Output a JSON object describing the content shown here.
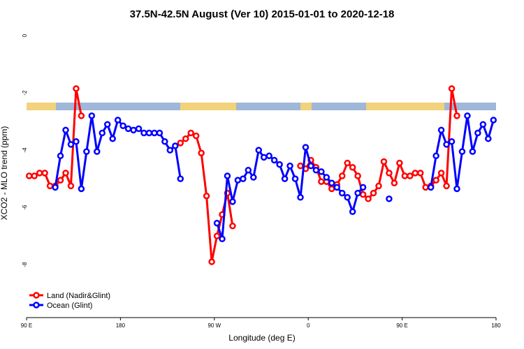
{
  "chart_data": {
    "type": "line",
    "title": "37.5N-42.5N August (Ver 10)   2015-01-01 to 2020-12-18",
    "xlabel": "Longitude (deg E)",
    "ylabel": "XCO2 - MLO trend (ppm)",
    "x": [
      92.5,
      97.5,
      102.5,
      107.5,
      112.5,
      117.5,
      122.5,
      127.5,
      132.5,
      137.5,
      142.5,
      147.5,
      152.5,
      157.5,
      162.5,
      167.5,
      172.5,
      177.5,
      182.5,
      187.5,
      192.5,
      197.5,
      202.5,
      207.5,
      212.5,
      217.5,
      222.5,
      227.5,
      232.5,
      237.5,
      242.5,
      247.5,
      252.5,
      257.5,
      262.5,
      267.5,
      272.5,
      277.5,
      282.5,
      287.5,
      292.5,
      297.5,
      302.5,
      307.5,
      312.5,
      317.5,
      322.5,
      327.5,
      332.5,
      337.5,
      342.5,
      347.5,
      352.5,
      357.5,
      362.5,
      367.5,
      372.5,
      377.5,
      382.5,
      387.5,
      392.5,
      397.5,
      402.5,
      407.5,
      412.5,
      417.5,
      422.5,
      427.5,
      432.5,
      437.5,
      442.5,
      447.5,
      452.5,
      457.5,
      462.5,
      467.5,
      472.5,
      477.5,
      482.5,
      487.5,
      492.5,
      497.5,
      502.5,
      507.5,
      512.5,
      517.5,
      522.5,
      527.5,
      532.5,
      537.5
    ],
    "series": [
      {
        "name": "Land (Nadir&Glint)",
        "color": "#ff0000",
        "values": [
          -4.9,
          -4.9,
          -4.8,
          -4.8,
          -5.25,
          -5.25,
          -5.05,
          -4.8,
          -5.25,
          -1.85,
          -2.8,
          null,
          null,
          null,
          null,
          null,
          null,
          null,
          null,
          null,
          null,
          null,
          null,
          null,
          null,
          null,
          null,
          null,
          null,
          -3.75,
          -3.6,
          -3.4,
          -3.5,
          -4.1,
          -5.6,
          -7.9,
          -7.0,
          -6.25,
          -5.5,
          -6.65,
          null,
          null,
          null,
          null,
          null,
          null,
          null,
          null,
          null,
          null,
          null,
          null,
          -4.55,
          -4.65,
          -4.35,
          -4.6,
          -5.1,
          -5.1,
          -5.35,
          -5.2,
          -4.9,
          -4.45,
          -4.6,
          -4.9,
          -5.55,
          -5.7,
          -5.5,
          -5.25,
          -4.4,
          -4.8,
          -5.15,
          -4.45,
          -4.9,
          -4.9,
          -4.8,
          -4.8,
          -5.3,
          -5.25,
          -5.05,
          -4.8,
          -5.25,
          -1.85,
          -2.8,
          null,
          null,
          null,
          null,
          null,
          null,
          null
        ]
      },
      {
        "name": "Ocean (Glint)",
        "color": "#0000ff",
        "values": [
          null,
          null,
          null,
          null,
          null,
          -5.3,
          -4.2,
          -3.3,
          -3.8,
          -3.7,
          -5.35,
          -4.05,
          -2.8,
          -4.05,
          -3.4,
          -3.1,
          -3.6,
          -2.95,
          -3.15,
          -3.25,
          -3.3,
          -3.25,
          -3.4,
          -3.4,
          -3.4,
          -3.4,
          -3.7,
          -4.0,
          -3.85,
          -5.0,
          null,
          null,
          null,
          null,
          null,
          null,
          -6.55,
          -7.1,
          -4.9,
          -5.8,
          -5.05,
          -5.0,
          -4.7,
          -4.95,
          -4.0,
          -4.25,
          -4.2,
          -4.35,
          -4.5,
          -5.0,
          -4.55,
          -5.0,
          -5.65,
          -3.9,
          -4.55,
          -4.7,
          -4.75,
          -4.95,
          -5.15,
          -5.3,
          -5.5,
          -5.65,
          -6.15,
          -5.5,
          -5.3,
          null,
          null,
          null,
          null,
          -5.7,
          null,
          null,
          null,
          null,
          null,
          null,
          null,
          -5.3,
          -4.2,
          -3.3,
          -3.8,
          -3.7,
          -5.35,
          -4.05,
          -2.8,
          -4.05,
          -3.4,
          -3.1,
          -3.6,
          -2.95
        ]
      }
    ],
    "xlim": [
      90,
      540
    ],
    "xticks": [
      {
        "value": 90,
        "label": "90 E"
      },
      {
        "value": 180,
        "label": "180"
      },
      {
        "value": 270,
        "label": "90 W"
      },
      {
        "value": 360,
        "label": "0"
      },
      {
        "value": 450,
        "label": "90 E"
      },
      {
        "value": 540,
        "label": "180"
      }
    ],
    "ylim": [
      -9.85,
      0.27
    ],
    "yticks": [
      0,
      -2,
      -4,
      -6,
      -8
    ],
    "legend": "bottom-left"
  }
}
